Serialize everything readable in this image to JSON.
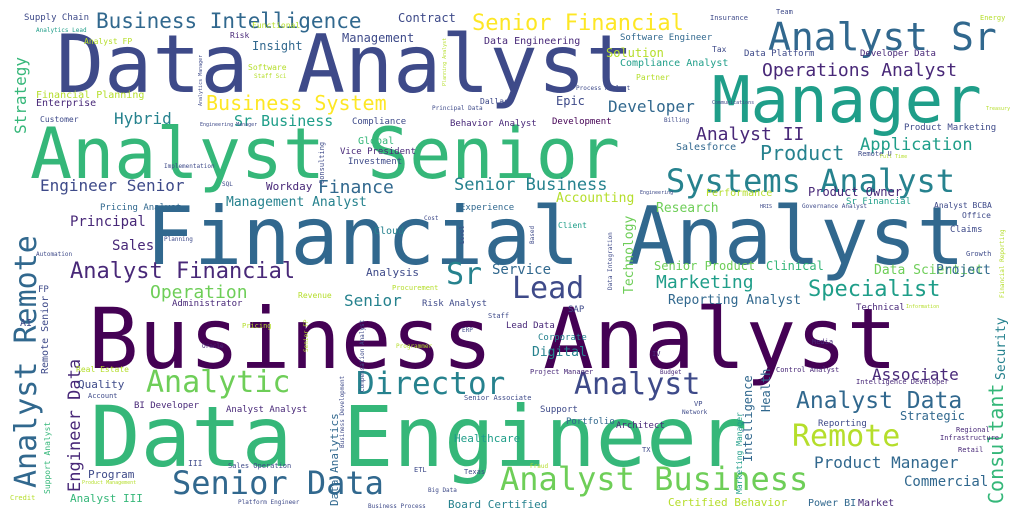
{
  "words": [
    "Business Analyst",
    "Data Engineer",
    "Financial Analyst",
    "Data Analyst",
    "Analyst Senior",
    "Manager",
    "Analyst Sr",
    "Systems Analyst",
    "Senior Data",
    "Analyst Business",
    "Business Intelligence",
    "Senior Financial",
    "Analyst Remote",
    "Director",
    "Analytic",
    "Analyst",
    "Remote",
    "Lead",
    "Sr",
    "Specialist",
    "Analyst Financial",
    "Business System",
    "Analyst Data",
    "Consultant",
    "Operations Analyst",
    "Engineer Senior",
    "Marketing",
    "Analyst II",
    "Senior Business",
    "Product",
    "Application",
    "Product Manager",
    "Finance",
    "Operation",
    "Engineer Data",
    "Hybrid",
    "Sr Business",
    "Developer",
    "Associate",
    "Strategy",
    "Principal",
    "Sales",
    "Senior",
    "Service",
    "Commercial",
    "Data Scientist",
    "Project",
    "Reporting Analyst",
    "Management Analyst",
    "Senior Product",
    "Clinical",
    "Technology",
    "Research",
    "Accounting",
    "Security",
    "Intelligence",
    "Strategic",
    "Health",
    "Digital",
    "Analysis",
    "Workday",
    "Epic",
    "Solution",
    "Insight",
    "Management",
    "Contract",
    "Supply Chain",
    "Data Engineering",
    "Software Engineer",
    "Compliance Analyst",
    "Enterprise",
    "Financial Planning",
    "Customer",
    "Behavior Analyst",
    "Development",
    "Product Owner",
    "Performance",
    "Administrator",
    "Risk Analyst",
    "Lead Data",
    "Program",
    "Analyst III",
    "Quality",
    "Healthcare",
    "Certified Behavior",
    "Board Certified",
    "Power BI",
    "Market",
    "Data Analytics",
    "Architect",
    "Salesforce",
    "Global",
    "Vice President",
    "Investment",
    "Compliance",
    "Cloud",
    "Experience",
    "Client",
    "Pricing Analyst",
    "Real Estate",
    "Analyst Analyst",
    "BI Developer",
    "Support",
    "Portfolio",
    "Reporting",
    "Corporate",
    "SAP",
    "Technical",
    "Marketing Manager",
    "Consulting",
    "Developer Data",
    "Data Platform",
    "Tax",
    "Partner",
    "Dallas",
    "Software",
    "Functional",
    "Risk",
    "Analyst FP",
    "Insurance",
    "Energy",
    "Team",
    "Product Marketing",
    "Remote U",
    "Governance Analyst",
    "Office",
    "Claims",
    "Growth",
    "Analyst BCBA",
    "Sr Financial",
    "Retail",
    "Regional",
    "Infrastructure",
    "Intelligence Developer",
    "Control Analyst",
    "Media",
    "Budget",
    "IV",
    "Project Manager",
    "Senior Associate",
    "Staff",
    "Procurement",
    "Revenue",
    "Pricing",
    "Oracle",
    "Programmer",
    "ERP",
    "Planning",
    "Automation",
    "Implementation",
    "SQL",
    "Cost",
    "Level",
    "Based",
    "Data Integration",
    "Texas",
    "TX",
    "Fraud",
    "VP",
    "Network",
    "Account",
    "Support Analyst",
    "Credit",
    "III",
    "Sales Operation",
    "Platform Engineer",
    "Business Process",
    "Big Data",
    "ETL",
    "Business Development",
    "Compensation Analyst",
    "Senior FP",
    "Remote Senior",
    "AI",
    "FP",
    "Analytics Lead",
    "Staff Sci",
    "Process Analyst",
    "Principal Data",
    "Engineering Manager",
    "Billing",
    "Treasury",
    "Communications",
    "Financial Reporting",
    "Engineering",
    "HRIS",
    "Full Time",
    "Planning Analyst",
    "Analytics Manager",
    "Product Management",
    "Information"
  ]
}
